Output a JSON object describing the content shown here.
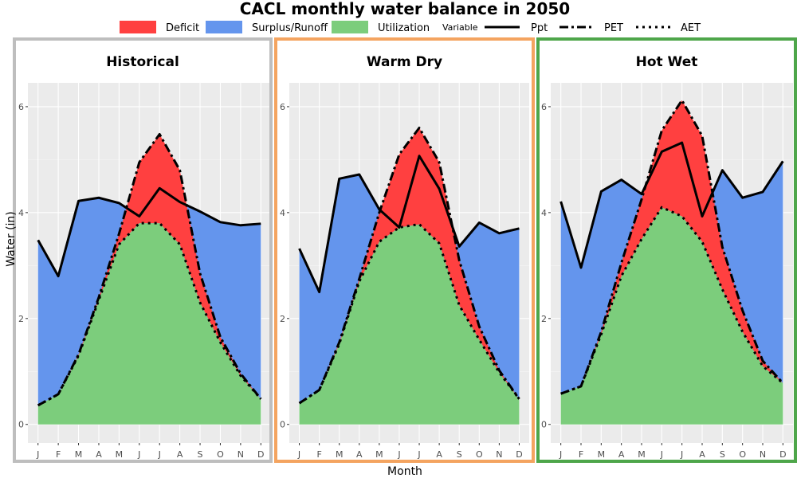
{
  "title": "CACL monthly water balance in 2050",
  "legend": {
    "fill_items": [
      {
        "label": "Deficit",
        "color": "#ff4040"
      },
      {
        "label": "Surplus/Runoff",
        "color": "#6495ed"
      },
      {
        "label": "Utilization",
        "color": "#7ccd7c"
      }
    ],
    "line_title": "Variable",
    "line_items": [
      {
        "label": "Ppt",
        "dash": "solid"
      },
      {
        "label": "PET",
        "dash": "dashdot"
      },
      {
        "label": "AET",
        "dash": "dotted"
      }
    ]
  },
  "axes": {
    "x_title": "Month",
    "y_title": "Water (in)",
    "y_ticks": [
      "0",
      "2",
      "4",
      "6"
    ]
  },
  "chart_data": {
    "type": "area",
    "title": "CACL monthly water balance in 2050",
    "xlabel": "Month",
    "ylabel": "Water (in)",
    "ylim": [
      -0.35,
      6.45
    ],
    "grid": true,
    "legend_position": "top",
    "categories": [
      "J",
      "F",
      "M",
      "A",
      "M",
      "J",
      "J",
      "A",
      "S",
      "O",
      "N",
      "D"
    ],
    "panels": [
      {
        "name": "Historical",
        "border_color": "#bebebe",
        "series": [
          {
            "name": "Ppt",
            "values": [
              3.48,
              2.8,
              4.22,
              4.28,
              4.18,
              3.93,
              4.46,
              4.2,
              4.02,
              3.82,
              3.76,
              3.79
            ]
          },
          {
            "name": "PET",
            "values": [
              0.36,
              0.57,
              1.32,
              2.4,
              3.6,
              4.95,
              5.48,
              4.8,
              2.85,
              1.65,
              0.96,
              0.48
            ]
          },
          {
            "name": "AET",
            "values": [
              0.36,
              0.57,
              1.3,
              2.35,
              3.4,
              3.8,
              3.8,
              3.4,
              2.3,
              1.55,
              0.92,
              0.48
            ]
          }
        ]
      },
      {
        "name": "Warm Dry",
        "border_color": "#f4a460",
        "series": [
          {
            "name": "Ppt",
            "values": [
              3.32,
              2.5,
              4.64,
              4.72,
              4.06,
              3.72,
              5.07,
              4.45,
              3.36,
              3.81,
              3.61,
              3.7
            ]
          },
          {
            "name": "PET",
            "values": [
              0.4,
              0.65,
              1.55,
              2.75,
              4.0,
              5.1,
              5.6,
              4.95,
              3.1,
              1.85,
              1.02,
              0.48
            ]
          },
          {
            "name": "AET",
            "values": [
              0.4,
              0.65,
              1.52,
              2.7,
              3.45,
              3.72,
              3.78,
              3.42,
              2.25,
              1.6,
              0.98,
              0.48
            ]
          }
        ]
      },
      {
        "name": "Hot Wet",
        "border_color": "#4ea64a",
        "series": [
          {
            "name": "Ppt",
            "values": [
              4.21,
              2.96,
              4.4,
              4.62,
              4.35,
              5.15,
              5.32,
              3.93,
              4.8,
              4.28,
              4.39,
              4.97
            ]
          },
          {
            "name": "PET",
            "values": [
              0.58,
              0.72,
              1.75,
              3.05,
              4.25,
              5.55,
              6.12,
              5.45,
              3.35,
              2.15,
              1.2,
              0.78
            ]
          },
          {
            "name": "AET",
            "values": [
              0.58,
              0.72,
              1.7,
              2.8,
              3.5,
              4.1,
              3.93,
              3.45,
              2.55,
              1.75,
              1.1,
              0.78
            ]
          }
        ]
      }
    ]
  }
}
